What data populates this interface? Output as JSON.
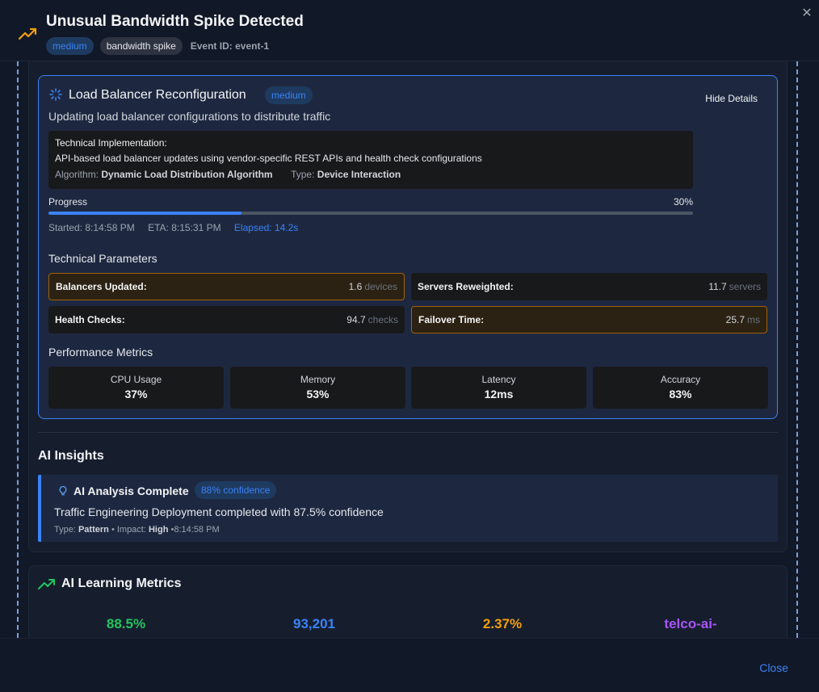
{
  "header": {
    "title": "Unusual Bandwidth Spike Detected",
    "severity": "medium",
    "type_tag": "bandwidth spike",
    "event_id": "Event ID: event-1",
    "close_icon": "close-icon",
    "alert_icon": "trending-up-icon"
  },
  "step": {
    "title": "Load Balancer Reconfiguration",
    "badge": "medium",
    "hide_details": "Hide Details",
    "description": "Updating load balancer configurations to distribute traffic",
    "impl_heading": "Technical Implementation:",
    "impl_text": "API-based load balancer updates using vendor-specific REST APIs and health check configurations",
    "algorithm_label": "Algorithm:",
    "algorithm_value": "Dynamic Load Distribution Algorithm",
    "type_label": "Type:",
    "type_value": "Device Interaction",
    "progress_label": "Progress",
    "progress_text": "30%",
    "progress_value": 0.3,
    "started": "Started: 8:14:58 PM",
    "eta": "ETA: 8:15:31 PM",
    "elapsed": "Elapsed: 14.2s"
  },
  "technical_parameters": {
    "title": "Technical Parameters",
    "items": [
      {
        "label": "Balancers Updated:",
        "value": "1.6",
        "unit": "devices",
        "highlight": true
      },
      {
        "label": "Servers Reweighted:",
        "value": "11.7",
        "unit": "servers",
        "highlight": false
      },
      {
        "label": "Health Checks:",
        "value": "94.7",
        "unit": "checks",
        "highlight": false
      },
      {
        "label": "Failover Time:",
        "value": "25.7",
        "unit": "ms",
        "highlight": true
      }
    ]
  },
  "performance_metrics": {
    "title": "Performance Metrics",
    "items": [
      {
        "label": "CPU Usage",
        "value": "37%"
      },
      {
        "label": "Memory",
        "value": "53%"
      },
      {
        "label": "Latency",
        "value": "12ms"
      },
      {
        "label": "Accuracy",
        "value": "83%"
      }
    ]
  },
  "ai_insights": {
    "title": "AI Insights",
    "card_title": "AI Analysis Complete",
    "confidence": "88% confidence",
    "text": "Traffic Engineering Deployment completed with 87.5% confidence",
    "type_label": "Type:",
    "type_value": "Pattern",
    "impact_label": "• Impact:",
    "impact_value": "High",
    "time": "•8:14:58 PM"
  },
  "learning": {
    "title": "AI Learning Metrics",
    "stats": [
      {
        "value": "88.5%",
        "color": "#22c55e"
      },
      {
        "value": "93,201",
        "color": "#3b82f6"
      },
      {
        "value": "2.37%",
        "color": "#f59e0b"
      },
      {
        "value": "telco-ai-",
        "color": "#a855f7"
      }
    ]
  },
  "footer": {
    "close_label": "Close"
  },
  "colors": {
    "accent": "#3b82f6",
    "warning": "#a16207",
    "background": "#111827"
  }
}
